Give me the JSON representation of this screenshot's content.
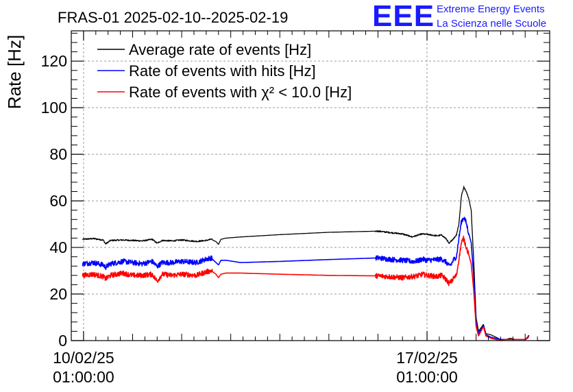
{
  "chart_data": {
    "type": "line",
    "title": "FRAS-01 2025-02-10--2025-02-19",
    "ylabel": "Rate [Hz]",
    "xlabel": "",
    "ylim": [
      0,
      133
    ],
    "xlim": [
      -0.25,
      9.5
    ],
    "grid": true,
    "legend_position": "top-left",
    "x_unit": "days since 10/02/25 01:00:00",
    "x_ticks": [
      {
        "x": 0,
        "label_line1": "10/02/25",
        "label_line2": "01:00:00"
      },
      {
        "x": 7,
        "label_line1": "17/02/25",
        "label_line2": "01:00:00"
      }
    ],
    "y_ticks": [
      {
        "y": 0,
        "label": "0"
      },
      {
        "y": 20,
        "label": "20"
      },
      {
        "y": 40,
        "label": "40"
      },
      {
        "y": 60,
        "label": "60"
      },
      {
        "y": 80,
        "label": "80"
      },
      {
        "y": 100,
        "label": "100"
      },
      {
        "y": 120,
        "label": "120"
      }
    ],
    "series": [
      {
        "name": "Average rate of events [Hz]",
        "color": "#000000",
        "noise": 0.3,
        "x": [
          -0.02,
          0.2,
          0.4,
          0.45,
          0.55,
          0.8,
          1.0,
          1.2,
          1.4,
          1.5,
          1.6,
          1.8,
          2.0,
          2.3,
          2.5,
          2.6,
          2.7,
          2.75,
          2.8,
          2.9,
          3.2,
          4.0,
          5.0,
          6.0,
          6.2,
          6.5,
          6.7,
          6.8,
          6.85,
          6.9,
          7.0,
          7.2,
          7.3,
          7.4,
          7.45,
          7.5,
          7.55,
          7.6,
          7.65,
          7.7,
          7.75,
          7.8,
          7.85,
          7.9,
          7.95,
          8.0,
          8.05,
          8.15,
          8.2,
          8.3,
          8.4,
          8.5,
          8.6,
          8.7,
          8.8,
          9.0,
          9.05,
          9.08
        ],
        "y": [
          43.5,
          43.8,
          43.2,
          41.5,
          43.0,
          43.2,
          43.0,
          42.8,
          43.5,
          41.8,
          43.0,
          42.8,
          43.2,
          42.6,
          43.0,
          43.5,
          42.5,
          41.3,
          43.5,
          44.0,
          44.5,
          45.5,
          46.5,
          47.0,
          46.5,
          45.8,
          44.5,
          45.2,
          45.5,
          45.8,
          45.6,
          45.0,
          45.3,
          43.5,
          41.5,
          43.0,
          44.0,
          45.5,
          50.0,
          62.0,
          66.0,
          64.0,
          61.0,
          56.0,
          35.0,
          10.0,
          4.0,
          7.0,
          3.0,
          2.5,
          1.5,
          0.5,
          0.5,
          1.0,
          0.5,
          0.5,
          1.5,
          2.5
        ]
      },
      {
        "name": "Rate of events with hits [Hz]",
        "color": "#0000ff",
        "noise": 1.1,
        "x": [
          -0.02,
          0.2,
          0.4,
          0.45,
          0.55,
          0.8,
          1.0,
          1.2,
          1.4,
          1.5,
          1.6,
          1.8,
          2.0,
          2.3,
          2.5,
          2.6,
          2.7,
          2.75,
          2.8,
          2.9,
          3.2,
          4.0,
          5.0,
          6.0,
          6.2,
          6.5,
          6.7,
          6.8,
          6.85,
          6.9,
          7.0,
          7.2,
          7.3,
          7.4,
          7.45,
          7.5,
          7.55,
          7.6,
          7.65,
          7.7,
          7.75,
          7.8,
          7.85,
          7.9,
          7.95,
          8.0,
          8.05,
          8.15,
          8.2,
          8.3,
          8.4,
          8.5,
          8.6,
          8.7,
          8.8,
          9.0,
          9.05,
          9.08
        ],
        "y": [
          33.0,
          33.5,
          32.5,
          31.5,
          33.0,
          34.0,
          33.5,
          33.0,
          34.0,
          31.8,
          33.5,
          33.5,
          34.0,
          33.5,
          35.0,
          35.5,
          33.5,
          32.5,
          34.5,
          34.5,
          33.5,
          34.0,
          34.8,
          35.5,
          35.0,
          34.5,
          34.0,
          34.2,
          34.5,
          35.0,
          34.5,
          34.8,
          35.0,
          33.5,
          32.0,
          33.0,
          35.0,
          36.0,
          44.0,
          51.0,
          53.0,
          50.5,
          46.0,
          42.0,
          28.0,
          8.0,
          3.0,
          6.5,
          2.5,
          1.5,
          1.0,
          0.5,
          0.5,
          0.5,
          0.5,
          0.5,
          1.0,
          2.5
        ]
      },
      {
        "name": "Rate of events with χ² < 10.0 [Hz]",
        "color": "#ff0000",
        "noise": 1.1,
        "x": [
          -0.02,
          0.2,
          0.4,
          0.45,
          0.55,
          0.8,
          1.0,
          1.2,
          1.4,
          1.5,
          1.6,
          1.8,
          2.0,
          2.3,
          2.5,
          2.6,
          2.7,
          2.75,
          2.8,
          2.9,
          3.2,
          4.0,
          5.0,
          6.0,
          6.2,
          6.5,
          6.7,
          6.8,
          6.85,
          6.9,
          7.0,
          7.2,
          7.3,
          7.4,
          7.45,
          7.5,
          7.55,
          7.6,
          7.65,
          7.7,
          7.75,
          7.8,
          7.85,
          7.9,
          7.95,
          8.0,
          8.05,
          8.15,
          8.2,
          8.3,
          8.4,
          8.5,
          8.6,
          8.7,
          8.8,
          9.0,
          9.05,
          9.08
        ],
        "y": [
          28.0,
          28.5,
          27.5,
          26.5,
          28.0,
          29.0,
          28.0,
          28.0,
          28.5,
          25.5,
          28.5,
          28.0,
          28.5,
          28.0,
          29.5,
          30.0,
          28.5,
          27.0,
          28.5,
          29.0,
          29.0,
          28.5,
          28.0,
          27.8,
          27.5,
          27.0,
          27.5,
          27.8,
          28.0,
          28.5,
          28.0,
          27.5,
          28.0,
          26.0,
          24.5,
          25.5,
          27.0,
          28.0,
          35.0,
          42.0,
          44.0,
          40.0,
          37.0,
          33.0,
          22.0,
          6.0,
          2.0,
          6.0,
          2.0,
          1.0,
          0.5,
          0.0,
          0.5,
          0.5,
          0.5,
          0.5,
          1.0,
          2.0
        ]
      }
    ],
    "gaps": [
      [
        2.62,
        5.95
      ]
    ]
  },
  "logo": {
    "letters": "EEE",
    "line1": "Extreme Energy Events",
    "line2": "La Scienza nelle Scuole"
  }
}
